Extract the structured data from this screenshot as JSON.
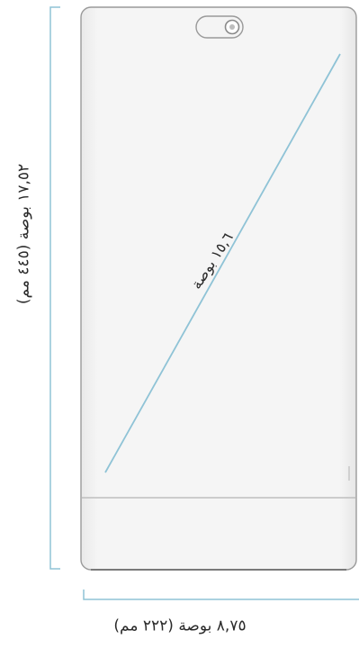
{
  "dimensions": {
    "height": "١٧,٥٢ بوصة (٤٤٥ مم)",
    "width": "٨,٧٥ بوصة (٢٢٢ مم)",
    "diagonal": "١٥,٦ بوصة"
  },
  "colors": {
    "dimension_line": "#8fc3d6",
    "device_body": "#f2f2f2",
    "device_outline": "#9a9a9a",
    "text": "#2a2a2a"
  }
}
